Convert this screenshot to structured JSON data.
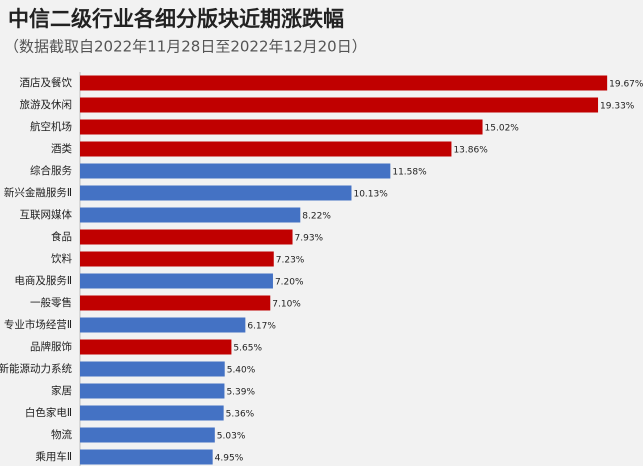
{
  "chart_data": {
    "type": "bar",
    "orientation": "horizontal",
    "title": "中信二级行业各细分版块近期涨跌幅",
    "subtitle": "（数据截取自2022年11月28日至2022年12月20日）",
    "categories": [
      "酒店及餐饮",
      "旅游及休闲",
      "航空机场",
      "酒类",
      "综合服务",
      "新兴金融服务Ⅱ",
      "互联网媒体",
      "食品",
      "饮料",
      "电商及服务Ⅱ",
      "一般零售",
      "专业市场经营Ⅱ",
      "品牌服饰",
      "新能源动力系统",
      "家居",
      "白色家电Ⅱ",
      "物流",
      "乘用车Ⅱ"
    ],
    "values": [
      19.67,
      19.33,
      15.02,
      13.86,
      11.58,
      10.13,
      8.22,
      7.93,
      7.23,
      7.2,
      7.1,
      6.17,
      5.65,
      5.4,
      5.39,
      5.36,
      5.03,
      4.95
    ],
    "value_labels": [
      "19.67%",
      "19.33%",
      "15.02%",
      "13.86%",
      "11.58%",
      "10.13%",
      "8.22%",
      "7.93%",
      "7.23%",
      "7.20%",
      "7.10%",
      "6.17%",
      "5.65%",
      "5.40%",
      "5.39%",
      "5.36%",
      "5.03%",
      "4.95%"
    ],
    "colors": [
      "#c00000",
      "#c00000",
      "#c00000",
      "#c00000",
      "#4472c4",
      "#4472c4",
      "#4472c4",
      "#c00000",
      "#c00000",
      "#4472c4",
      "#c00000",
      "#4472c4",
      "#c00000",
      "#4472c4",
      "#4472c4",
      "#4472c4",
      "#4472c4",
      "#4472c4"
    ],
    "xlim": [
      0,
      20
    ]
  }
}
